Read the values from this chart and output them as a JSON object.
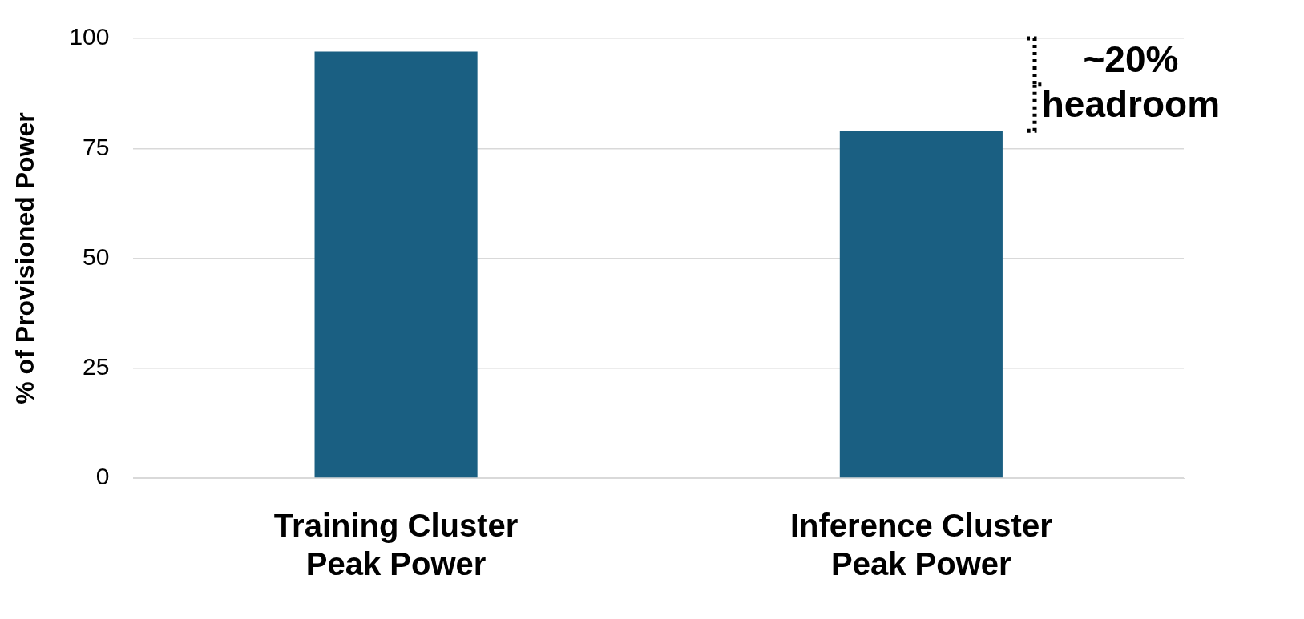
{
  "chart_data": {
    "type": "bar",
    "ylabel": "% of Provisioned Power",
    "categories": [
      "Training Cluster Peak Power",
      "Inference Cluster Peak Power"
    ],
    "values": [
      97,
      79
    ],
    "color": "#1a5f82",
    "ylim": [
      0,
      100
    ],
    "yticks": [
      0,
      25,
      50,
      75,
      100
    ],
    "grid": "y",
    "annotations": [
      "~20% headroom"
    ]
  }
}
